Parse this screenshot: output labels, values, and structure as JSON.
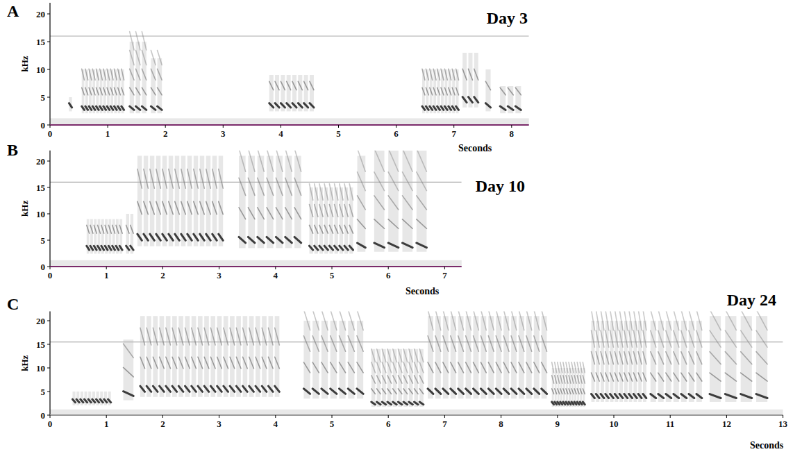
{
  "chart_data": [
    {
      "type": "spectrogram",
      "label": "A",
      "title": "Day 3",
      "x_label": "Seconds",
      "y_label": "kHz",
      "xlim": [
        0,
        8.3
      ],
      "xticks": [
        0,
        1,
        2,
        3,
        4,
        5,
        6,
        7,
        8
      ],
      "ylim": [
        0,
        22
      ],
      "yticks": [
        0,
        5,
        10,
        15,
        20
      ],
      "hline": 16,
      "syllables": [
        {
          "start": 0.33,
          "end": 0.4,
          "count": 1,
          "f0": 3.5,
          "high": 5
        },
        {
          "start": 0.55,
          "end": 1.3,
          "count": 12,
          "f0": 3,
          "high": 10
        },
        {
          "start": 1.38,
          "end": 1.7,
          "count": 3,
          "f0": 3,
          "high": 15
        },
        {
          "start": 1.75,
          "end": 1.97,
          "count": 2,
          "f0": 3,
          "high": 12
        },
        {
          "start": 3.8,
          "end": 4.6,
          "count": 8,
          "f0": 3.5,
          "high": 9
        },
        {
          "start": 6.45,
          "end": 7.1,
          "count": 10,
          "f0": 3,
          "high": 10
        },
        {
          "start": 7.15,
          "end": 7.45,
          "count": 3,
          "f0": 4.5,
          "high": 13
        },
        {
          "start": 7.55,
          "end": 7.67,
          "count": 1,
          "f0": 3.5,
          "high": 10
        },
        {
          "start": 7.8,
          "end": 8.2,
          "count": 3,
          "f0": 3,
          "high": 7
        }
      ]
    },
    {
      "type": "spectrogram",
      "label": "B",
      "title": "Day 10",
      "x_label": "Seconds",
      "y_label": "kHz",
      "xlim": [
        0,
        7.3
      ],
      "xticks": [
        0,
        1,
        2,
        3,
        4,
        5,
        6,
        7
      ],
      "ylim": [
        0,
        22
      ],
      "yticks": [
        0,
        5,
        10,
        15,
        20
      ],
      "hline": 16,
      "syllables": [
        {
          "start": 0.65,
          "end": 1.3,
          "count": 10,
          "f0": 3.5,
          "high": 9
        },
        {
          "start": 1.35,
          "end": 1.5,
          "count": 2,
          "f0": 3.5,
          "high": 10
        },
        {
          "start": 1.55,
          "end": 3.1,
          "count": 14,
          "f0": 5.5,
          "high": 21
        },
        {
          "start": 3.35,
          "end": 4.5,
          "count": 7,
          "f0": 5,
          "high": 21
        },
        {
          "start": 4.6,
          "end": 5.4,
          "count": 9,
          "f0": 3.5,
          "high": 15
        },
        {
          "start": 5.45,
          "end": 5.65,
          "count": 1,
          "f0": 4,
          "high": 21
        },
        {
          "start": 5.75,
          "end": 6.75,
          "count": 4,
          "f0": 4,
          "high": 22
        }
      ]
    },
    {
      "type": "spectrogram",
      "label": "C",
      "title": "Day 24",
      "x_label": "Seconds",
      "y_label": "kHz",
      "xlim": [
        0,
        13
      ],
      "xticks": [
        0,
        1,
        2,
        3,
        4,
        5,
        6,
        7,
        8,
        9,
        10,
        11,
        12,
        13
      ],
      "ylim": [
        0,
        22
      ],
      "yticks": [
        0,
        5,
        10,
        15,
        20
      ],
      "hline": 15.5,
      "syllables": [
        {
          "start": 0.4,
          "end": 1.1,
          "count": 10,
          "f0": 3,
          "high": 5
        },
        {
          "start": 1.3,
          "end": 1.55,
          "count": 1,
          "f0": 4.5,
          "high": 16
        },
        {
          "start": 1.6,
          "end": 4.1,
          "count": 22,
          "f0": 5.5,
          "high": 21
        },
        {
          "start": 4.5,
          "end": 5.6,
          "count": 7,
          "f0": 5,
          "high": 20
        },
        {
          "start": 5.7,
          "end": 6.65,
          "count": 10,
          "f0": 2.5,
          "high": 14
        },
        {
          "start": 6.7,
          "end": 8.85,
          "count": 16,
          "f0": 5,
          "high": 21
        },
        {
          "start": 8.9,
          "end": 9.5,
          "count": 12,
          "f0": 2.5,
          "high": 10
        },
        {
          "start": 9.6,
          "end": 10.6,
          "count": 12,
          "f0": 4,
          "high": 20
        },
        {
          "start": 10.65,
          "end": 11.6,
          "count": 7,
          "f0": 4,
          "high": 20
        },
        {
          "start": 11.7,
          "end": 12.8,
          "count": 4,
          "f0": 4,
          "high": 21
        }
      ]
    }
  ]
}
